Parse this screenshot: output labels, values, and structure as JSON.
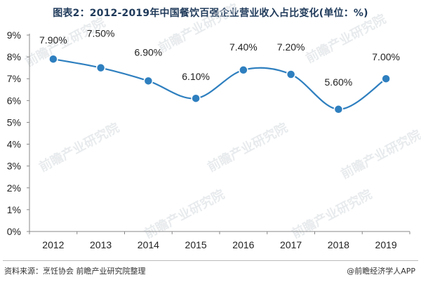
{
  "title": "图表2：2012-2019年中国餐饮百强企业营业收入占比变化(单位：%)",
  "source": "资料来源：烹饪协会 前瞻产业研究院整理",
  "brand": "@前瞻经济学人APP",
  "watermark": "前瞻产业研究院",
  "colors": {
    "line": "#2e7fbf",
    "marker": "#2e7fbf",
    "title": "#1f3a5a"
  },
  "chart_data": {
    "type": "line",
    "categories": [
      "2012",
      "2013",
      "2014",
      "2015",
      "2016",
      "2017",
      "2018",
      "2019"
    ],
    "series": [
      {
        "values": [
          7.9,
          7.5,
          6.9,
          6.1,
          7.4,
          7.2,
          5.6,
          7.0
        ]
      }
    ],
    "data_labels": [
      "7.90%",
      "7.50%",
      "6.90%",
      "6.10%",
      "7.40%",
      "7.20%",
      "5.60%",
      "7.00%"
    ],
    "yticks": [
      "0%",
      "1%",
      "2%",
      "3%",
      "4%",
      "5%",
      "6%",
      "7%",
      "8%",
      "9%"
    ],
    "ylim": [
      0,
      9
    ],
    "xlabel": "",
    "ylabel": "",
    "grid": false,
    "legend": "none",
    "smooth": true
  }
}
